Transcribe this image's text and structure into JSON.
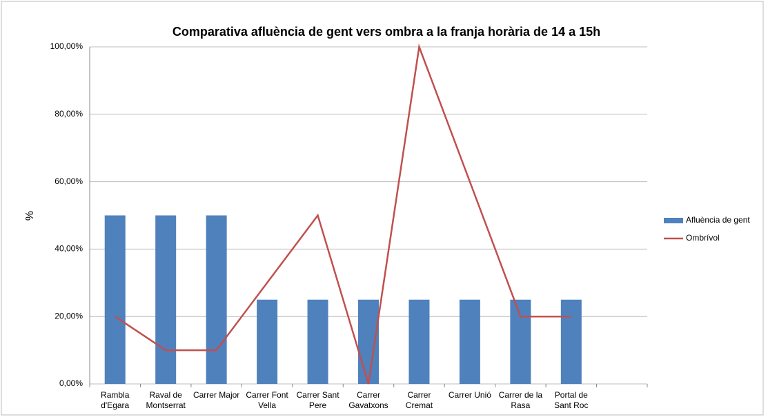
{
  "chart_data": {
    "type": "bar-line",
    "title": "Comparativa afluència de gent vers ombra a la franja horària de 14 a 15h",
    "ylabel": "%",
    "categories": [
      "Rambla d'Egara",
      "Raval de Montserrat",
      "Carrer Major",
      "Carrer Font Vella",
      "Carrer Sant Pere",
      "Carrer Gavatxons",
      "Carrer Cremat",
      "Carrer Unió",
      "Carrer de la Rasa",
      "Portal de Sant Roc",
      null
    ],
    "series": [
      {
        "name": "Afluència de gent",
        "type": "bar",
        "color": "#4f81bd",
        "values": [
          50,
          50,
          50,
          25,
          25,
          25,
          25,
          25,
          25,
          25,
          null
        ]
      },
      {
        "name": "Ombrívol",
        "type": "line",
        "color": "#c0504d",
        "values": [
          20,
          10,
          10,
          30,
          50,
          0,
          100,
          60,
          20,
          20,
          null
        ]
      }
    ],
    "ylim": [
      0,
      100
    ],
    "yticks": [
      {
        "value": 0,
        "label": "0,00%"
      },
      {
        "value": 20,
        "label": "20,00%"
      },
      {
        "value": 40,
        "label": "40,00%"
      },
      {
        "value": 60,
        "label": "60,00%"
      },
      {
        "value": 80,
        "label": "80,00%"
      },
      {
        "value": 100,
        "label": "100,00%"
      }
    ],
    "grid": true,
    "legend": "right"
  }
}
